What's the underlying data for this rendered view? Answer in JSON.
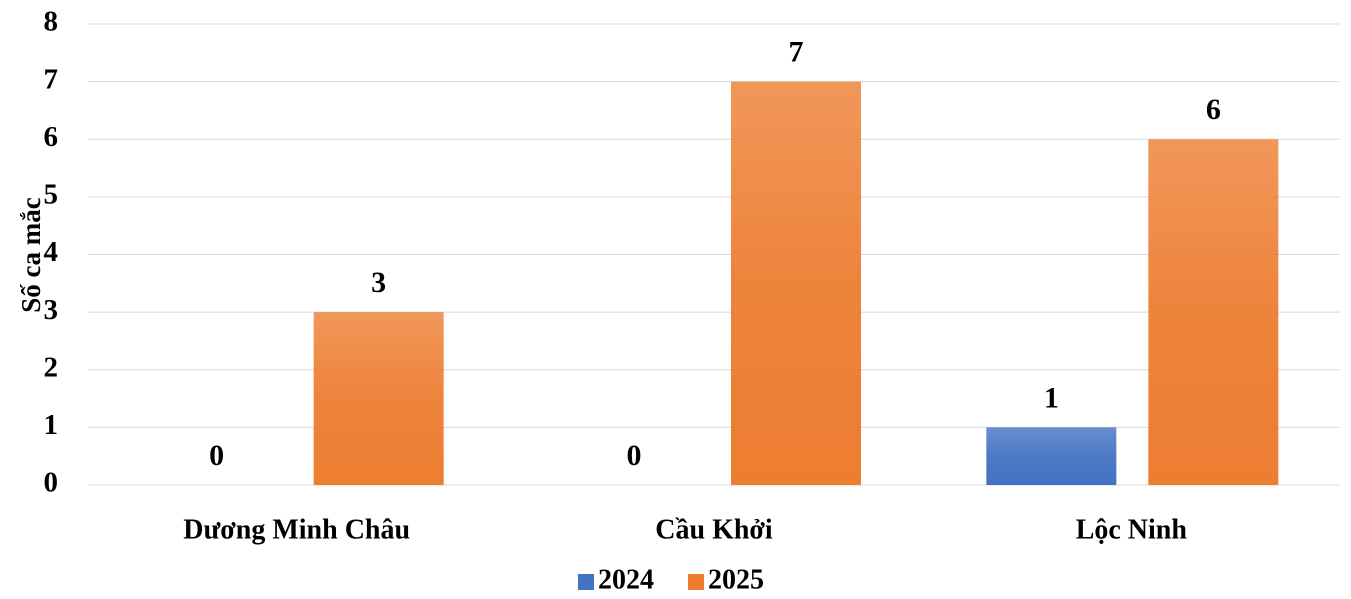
{
  "chart_data": {
    "type": "bar",
    "y_label": "Số ca mắc",
    "categories": [
      "Dương Minh Châu",
      "Cầu Khởi",
      "Lộc Ninh"
    ],
    "series": [
      {
        "name": "2024",
        "color": "#4472c4",
        "values": [
          0,
          0,
          1
        ]
      },
      {
        "name": "2025",
        "color": "#ed7d31",
        "values": [
          3,
          7,
          6
        ]
      }
    ],
    "ylim": [
      0,
      8
    ],
    "yticks": [
      0,
      1,
      2,
      3,
      4,
      5,
      6,
      7,
      8
    ],
    "grid": true,
    "legend": "bottom"
  }
}
